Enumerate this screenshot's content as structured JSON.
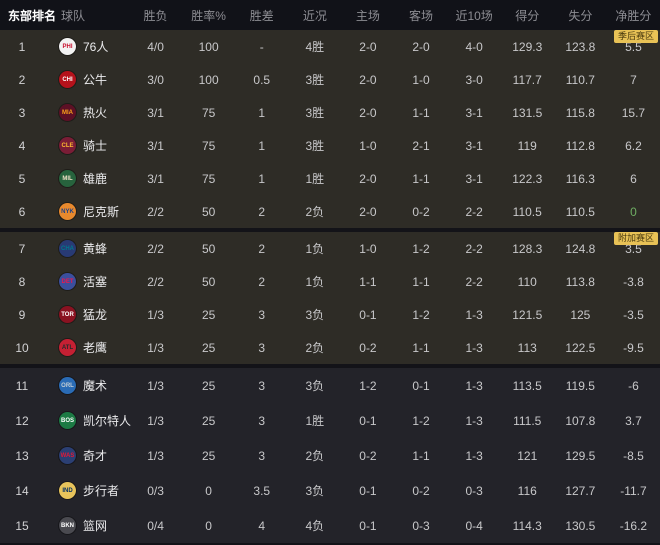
{
  "header": {
    "columns": [
      "东部排名",
      "球队",
      "胜负",
      "胜率%",
      "胜差",
      "近况",
      "主场",
      "客场",
      "近10场",
      "得分",
      "失分",
      "净胜分"
    ]
  },
  "colors": {
    "badge_bg": "#e8c256",
    "badge_text": "#49390d",
    "zone_bg_upper": "#2e2c26",
    "zone_bg_lower": "#232329",
    "zero_net_green": "#6fae63"
  },
  "groups": [
    {
      "badge": "季后赛区",
      "rows": [
        {
          "rank": "1",
          "team": "76人",
          "abbr": "PHI",
          "logo_bg": "#f2f2f2",
          "logo_fg": "#c8102e",
          "wl": "4/0",
          "win_pct": "100",
          "gb": "-",
          "streak": "4胜",
          "home": "2-0",
          "away": "2-0",
          "last10": "4-0",
          "pf": "129.3",
          "pa": "123.8",
          "net": "5.5"
        },
        {
          "rank": "2",
          "team": "公牛",
          "abbr": "CHI",
          "logo_bg": "#b5121b",
          "logo_fg": "#ffffff",
          "wl": "3/0",
          "win_pct": "100",
          "gb": "0.5",
          "streak": "3胜",
          "home": "2-0",
          "away": "1-0",
          "last10": "3-0",
          "pf": "117.7",
          "pa": "110.7",
          "net": "7"
        },
        {
          "rank": "3",
          "team": "热火",
          "abbr": "MIA",
          "logo_bg": "#5c1025",
          "logo_fg": "#f9a01b",
          "wl": "3/1",
          "win_pct": "75",
          "gb": "1",
          "streak": "3胜",
          "home": "2-0",
          "away": "1-1",
          "last10": "3-1",
          "pf": "131.5",
          "pa": "115.8",
          "net": "15.7"
        },
        {
          "rank": "4",
          "team": "骑士",
          "abbr": "CLE",
          "logo_bg": "#7a1d36",
          "logo_fg": "#fdbb30",
          "wl": "3/1",
          "win_pct": "75",
          "gb": "1",
          "streak": "3胜",
          "home": "1-0",
          "away": "2-1",
          "last10": "3-1",
          "pf": "119",
          "pa": "112.8",
          "net": "6.2"
        },
        {
          "rank": "5",
          "team": "雄鹿",
          "abbr": "MIL",
          "logo_bg": "#27633d",
          "logo_fg": "#eee1c6",
          "wl": "3/1",
          "win_pct": "75",
          "gb": "1",
          "streak": "1胜",
          "home": "2-0",
          "away": "1-1",
          "last10": "3-1",
          "pf": "122.3",
          "pa": "116.3",
          "net": "6"
        },
        {
          "rank": "6",
          "team": "尼克斯",
          "abbr": "NYK",
          "logo_bg": "#e8892d",
          "logo_fg": "#1d428a",
          "wl": "2/2",
          "win_pct": "50",
          "gb": "2",
          "streak": "2负",
          "home": "2-0",
          "away": "0-2",
          "last10": "2-2",
          "pf": "110.5",
          "pa": "110.5",
          "net": "0",
          "net_color": "#6fae63"
        }
      ]
    },
    {
      "badge": "附加赛区",
      "rows": [
        {
          "rank": "7",
          "team": "黄蜂",
          "abbr": "CHA",
          "logo_bg": "#283a74",
          "logo_fg": "#00788c",
          "wl": "2/2",
          "win_pct": "50",
          "gb": "2",
          "streak": "1负",
          "home": "1-0",
          "away": "1-2",
          "last10": "2-2",
          "pf": "128.3",
          "pa": "124.8",
          "net": "3.5"
        },
        {
          "rank": "8",
          "team": "活塞",
          "abbr": "DET",
          "logo_bg": "#3b4f9e",
          "logo_fg": "#ed174c",
          "wl": "2/2",
          "win_pct": "50",
          "gb": "2",
          "streak": "1负",
          "home": "1-1",
          "away": "1-1",
          "last10": "2-2",
          "pf": "110",
          "pa": "113.8",
          "net": "-3.8"
        },
        {
          "rank": "9",
          "team": "猛龙",
          "abbr": "TOR",
          "logo_bg": "#8a1221",
          "logo_fg": "#ffffff",
          "wl": "1/3",
          "win_pct": "25",
          "gb": "3",
          "streak": "3负",
          "home": "0-1",
          "away": "1-2",
          "last10": "1-3",
          "pf": "121.5",
          "pa": "125",
          "net": "-3.5"
        },
        {
          "rank": "10",
          "team": "老鹰",
          "abbr": "ATL",
          "logo_bg": "#c42033",
          "logo_fg": "#26282a",
          "wl": "1/3",
          "win_pct": "25",
          "gb": "3",
          "streak": "2负",
          "home": "0-2",
          "away": "1-1",
          "last10": "1-3",
          "pf": "113",
          "pa": "122.5",
          "net": "-9.5"
        }
      ]
    },
    {
      "badge": null,
      "rows": [
        {
          "rank": "11",
          "team": "魔术",
          "abbr": "ORL",
          "logo_bg": "#2a6bb5",
          "logo_fg": "#c4ced4",
          "wl": "1/3",
          "win_pct": "25",
          "gb": "3",
          "streak": "3负",
          "home": "1-2",
          "away": "0-1",
          "last10": "1-3",
          "pf": "113.5",
          "pa": "119.5",
          "net": "-6"
        },
        {
          "rank": "12",
          "team": "凯尔特人",
          "abbr": "BOS",
          "logo_bg": "#1c7a44",
          "logo_fg": "#ffffff",
          "wl": "1/3",
          "win_pct": "25",
          "gb": "3",
          "streak": "1胜",
          "home": "0-1",
          "away": "1-2",
          "last10": "1-3",
          "pf": "111.5",
          "pa": "107.8",
          "net": "3.7"
        },
        {
          "rank": "13",
          "team": "奇才",
          "abbr": "WAS",
          "logo_bg": "#2b3f73",
          "logo_fg": "#e31837",
          "wl": "1/3",
          "win_pct": "25",
          "gb": "3",
          "streak": "2负",
          "home": "0-2",
          "away": "1-1",
          "last10": "1-3",
          "pf": "121",
          "pa": "129.5",
          "net": "-8.5"
        },
        {
          "rank": "14",
          "team": "步行者",
          "abbr": "IND",
          "logo_bg": "#e7c35b",
          "logo_fg": "#002d62",
          "wl": "0/3",
          "win_pct": "0",
          "gb": "3.5",
          "streak": "3负",
          "home": "0-1",
          "away": "0-2",
          "last10": "0-3",
          "pf": "116",
          "pa": "127.7",
          "net": "-11.7"
        },
        {
          "rank": "15",
          "team": "篮网",
          "abbr": "BKN",
          "logo_bg": "#4a4a50",
          "logo_fg": "#ffffff",
          "wl": "0/4",
          "win_pct": "0",
          "gb": "4",
          "streak": "4负",
          "home": "0-1",
          "away": "0-3",
          "last10": "0-4",
          "pf": "114.3",
          "pa": "130.5",
          "net": "-16.2"
        }
      ]
    }
  ]
}
